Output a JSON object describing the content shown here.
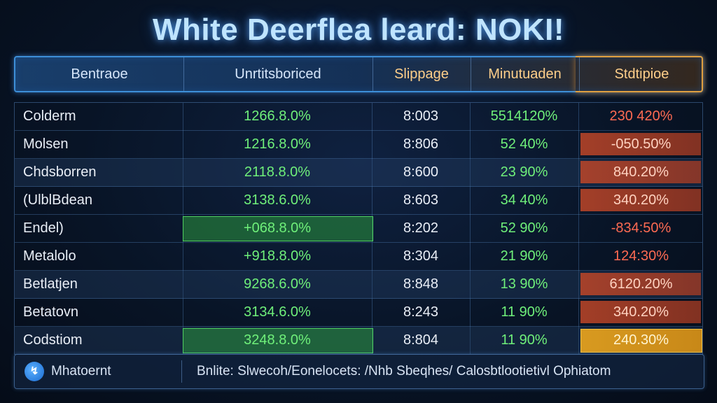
{
  "title": "White Deerflea leard: NOKI!",
  "columns": {
    "name": "Bentraoe",
    "unrealized": "Unrtitsboriced",
    "slippage": "Slippage",
    "market": "Minutuaden",
    "standard": "Stdtipioe"
  },
  "rows": [
    {
      "name": "Colderm",
      "unrealized": "1266.8.0%",
      "slippage": "8:003",
      "market": "5514120%",
      "standard": "230 420%"
    },
    {
      "name": "Molsen",
      "unrealized": "1216.8.0%",
      "slippage": "8:806",
      "market": "52 40%",
      "standard": "-050.50%"
    },
    {
      "name": "Chdsborren",
      "unrealized": "2118.8.0%",
      "slippage": "8:600",
      "market": "23 90%",
      "standard": "840.20%"
    },
    {
      "name": "(UlblBdean",
      "unrealized": "3138.6.0%",
      "slippage": "8:603",
      "market": "34 40%",
      "standard": "340.20%"
    },
    {
      "name": "Endel)",
      "unrealized": "+068.8.0%",
      "slippage": "8:202",
      "market": "52 90%",
      "standard": "-834:50%"
    },
    {
      "name": "Metalolo",
      "unrealized": "+918.8.0%",
      "slippage": "8:304",
      "market": "21 90%",
      "standard": "124:30%"
    },
    {
      "name": "Betlatjen",
      "unrealized": "9268.6.0%",
      "slippage": "8:848",
      "market": "13 90%",
      "standard": "6120.20%"
    },
    {
      "name": "Betatovn",
      "unrealized": "3134.6.0%",
      "slippage": "8:243",
      "market": "11 90%",
      "standard": "340.20%"
    },
    {
      "name": "Codstiom",
      "unrealized": "3248.8.0%",
      "slippage": "8:804",
      "market": "11 90%",
      "standard": "240.30%"
    }
  ],
  "footer": {
    "icon": "app-logo-icon",
    "label": "Mhatoernt",
    "text": "Bnlite: Slwecoh/Eonelocets: /Nhb Sbeqhes/ Calosbtlootietivl Ophiatom"
  },
  "colors": {
    "positive": "#6ff07a",
    "negative": "#ff6a52",
    "accent_blue": "#3d8fd8",
    "accent_gold": "#e0a040"
  }
}
